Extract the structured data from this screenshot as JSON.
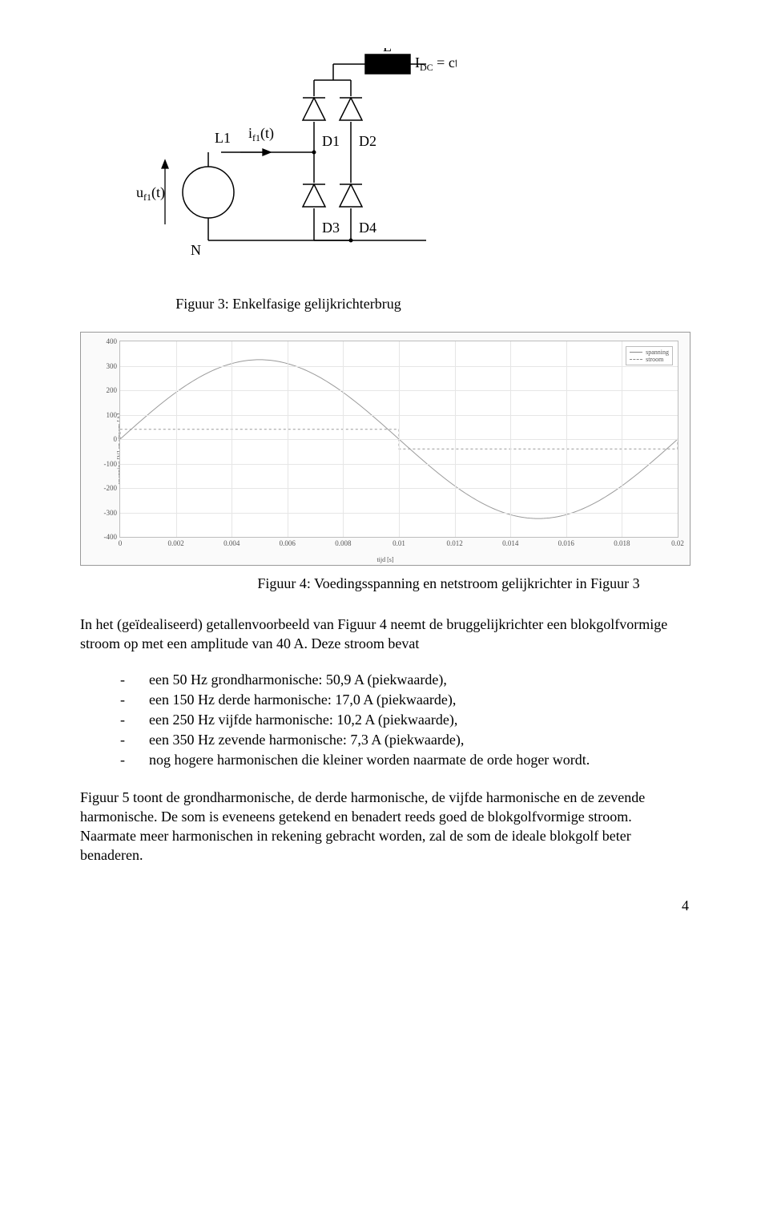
{
  "circuit": {
    "labels": {
      "L": "L",
      "Idc": "I",
      "Idc_sub": "DC",
      "Idc_eq": "= cte",
      "L1": "L1",
      "if1": "i",
      "if1_sub": "f1",
      "if1_arg": "(t)",
      "uf1": "u",
      "uf1_sub": "f1",
      "uf1_arg": "(t)",
      "N": "N",
      "D1": "D1",
      "D2": "D2",
      "D3": "D3",
      "D4": "D4"
    },
    "colors": {
      "stroke": "#000000",
      "fill_black": "#000000",
      "bg": "#ffffff"
    }
  },
  "fig3_caption": "Figuur 3: Enkelfasige gelijkrichterbrug",
  "chart": {
    "ylabel": "spanning [V] en stroom [A]",
    "xlabel": "tijd [s]",
    "ylim": [
      -400,
      400
    ],
    "yticks": [
      -400,
      -300,
      -200,
      -100,
      0,
      100,
      200,
      300,
      400
    ],
    "xlim": [
      0,
      0.02
    ],
    "xticks": [
      0,
      0.002,
      0.004,
      0.006,
      0.008,
      0.01,
      0.012,
      0.014,
      0.016,
      0.018,
      0.02
    ],
    "legend": [
      "spanning",
      "stroom"
    ],
    "voltage": {
      "amplitude": 325,
      "freq_hz": 50,
      "color": "#9a9a9a",
      "width": 1
    },
    "current_square": {
      "amplitude": 40,
      "color": "#9a9a9a",
      "width": 1,
      "dash": "3,3"
    },
    "bg": "#fafafa",
    "plot_bg": "#ffffff",
    "grid": "#e6e6e6",
    "border": "#bdbdbd"
  },
  "fig4_caption": "Figuur 4: Voedingsspanning en netstroom gelijkrichter in Figuur 3",
  "para1": "In het (geïdealiseerd) getallenvoorbeeld van Figuur 4 neemt de bruggelijkrichter een blokgolfvormige stroom op met een amplitude van 40 A. Deze stroom bevat",
  "harmonics": [
    "een 50 Hz grondharmonische: 50,9 A (piekwaarde),",
    "een 150 Hz derde harmonische: 17,0 A (piekwaarde),",
    "een 250 Hz vijfde harmonische: 10,2 A (piekwaarde),",
    "een 350 Hz zevende harmonische: 7,3 A (piekwaarde),",
    "nog hogere harmonischen die kleiner worden naarmate de orde hoger wordt."
  ],
  "para2": "Figuur 5 toont de grondharmonische, de derde harmonische, de vijfde harmonische en de zevende harmonische. De som is eveneens getekend en benadert reeds goed de blokgolfvormige stroom. Naarmate meer harmonischen in rekening gebracht worden, zal de som de ideale blokgolf beter benaderen.",
  "page_number": "4"
}
